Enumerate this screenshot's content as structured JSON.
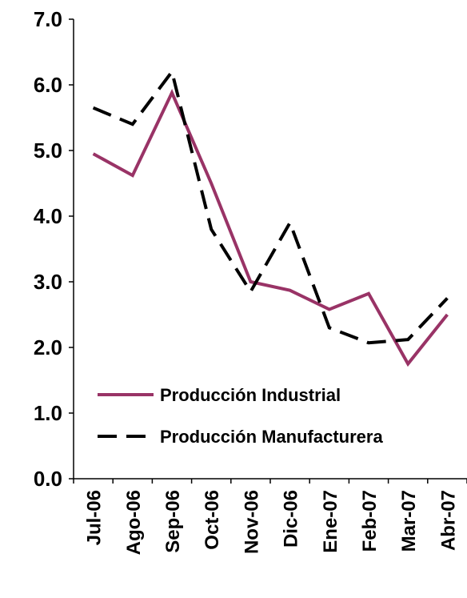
{
  "chart_data": {
    "type": "line",
    "categories": [
      "Jul-06",
      "Ago-06",
      "Sep-06",
      "Oct-06",
      "Nov-06",
      "Dic-06",
      "Ene-07",
      "Feb-07",
      "Mar-07",
      "Abr-07"
    ],
    "series": [
      {
        "name": "Producción Industrial",
        "color": "#993366",
        "dash": false,
        "values": [
          4.95,
          4.62,
          5.88,
          4.5,
          3.0,
          2.87,
          2.58,
          2.82,
          1.75,
          2.5
        ]
      },
      {
        "name": "Producción Manufacturera",
        "color": "#000000",
        "dash": true,
        "values": [
          5.65,
          5.4,
          6.2,
          3.8,
          2.85,
          3.9,
          2.3,
          2.07,
          2.12,
          2.75
        ]
      }
    ],
    "ylim": [
      0,
      7
    ],
    "yticks": [
      {
        "value": 0,
        "label": "0.0"
      },
      {
        "value": 1,
        "label": "1.0"
      },
      {
        "value": 2,
        "label": "2.0"
      },
      {
        "value": 3,
        "label": "3.0"
      },
      {
        "value": 4,
        "label": "4.0"
      },
      {
        "value": 5,
        "label": "5.0"
      },
      {
        "value": 6,
        "label": "6.0"
      },
      {
        "value": 7,
        "label": "7.0"
      }
    ],
    "grid": false,
    "legend": "lower-left"
  }
}
